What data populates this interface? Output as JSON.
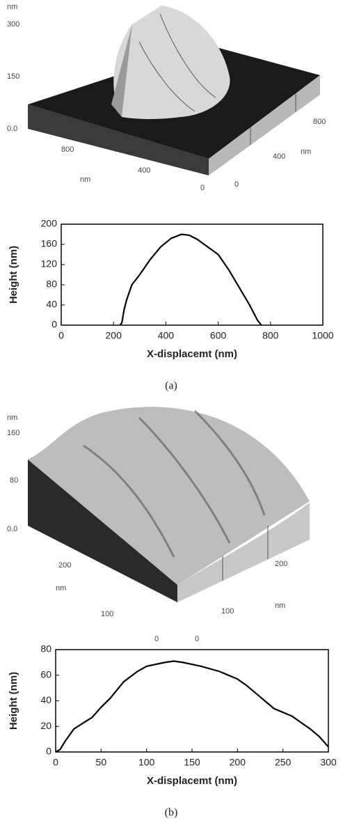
{
  "afm_images": [
    {
      "labels": [
        "nm",
        "300",
        "150",
        "0.0",
        "800",
        "400",
        "nm",
        "0",
        "0",
        "400",
        "nm",
        "800"
      ]
    },
    {
      "labels": [
        "nm",
        "160",
        "80",
        "0.0",
        "200",
        "nm",
        "100",
        "0",
        "0",
        "100",
        "nm",
        "200"
      ]
    }
  ],
  "chart_data": [
    {
      "type": "line",
      "caption": "(a)",
      "xlabel": "X-displacemt (nm)",
      "ylabel": "Height (nm)",
      "color": "#000000",
      "x": [
        225,
        232,
        240,
        250,
        270,
        300,
        340,
        380,
        420,
        460,
        490,
        520,
        560,
        600,
        640,
        680,
        720,
        750,
        765
      ],
      "values": [
        0,
        5,
        30,
        50,
        80,
        100,
        130,
        155,
        172,
        180,
        178,
        170,
        155,
        140,
        110,
        75,
        40,
        10,
        0
      ],
      "xlim": [
        0,
        1000
      ],
      "ylim": [
        0,
        200
      ],
      "xticks": [
        0,
        200,
        400,
        600,
        800,
        1000
      ],
      "yticks": [
        0,
        40,
        80,
        120,
        160,
        200
      ]
    },
    {
      "type": "line",
      "caption": "(b)",
      "xlabel": "X-displacemt (nm)",
      "ylabel": "Height (nm)",
      "color": "#000000",
      "x": [
        0,
        5,
        10,
        20,
        40,
        50,
        60,
        75,
        90,
        100,
        120,
        130,
        140,
        160,
        180,
        200,
        210,
        230,
        240,
        260,
        280,
        290,
        300
      ],
      "values": [
        0,
        2,
        8,
        18,
        27,
        35,
        42,
        55,
        63,
        67,
        70,
        71,
        70,
        67,
        63,
        57,
        52,
        40,
        34,
        28,
        18,
        12,
        4
      ],
      "xlim": [
        0,
        300
      ],
      "ylim": [
        0,
        80
      ],
      "xticks": [
        0,
        50,
        100,
        150,
        200,
        250,
        300
      ],
      "yticks": [
        0,
        20,
        40,
        60,
        80
      ]
    }
  ]
}
